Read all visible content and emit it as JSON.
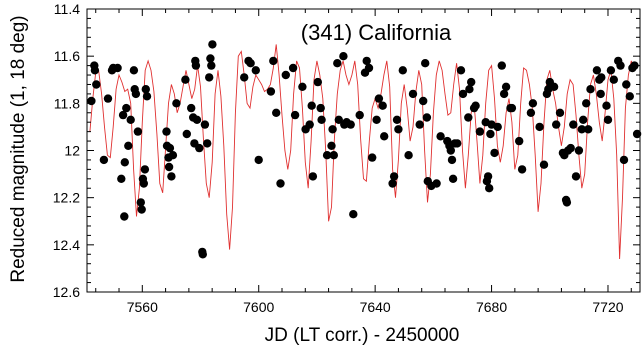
{
  "chart_data": {
    "type": "scatter",
    "title": "(341) California",
    "xlabel": "JD (LT corr.) - 2450000",
    "ylabel": "Reduced magnitude (1, 18 deg)",
    "xlim": [
      7541,
      7731
    ],
    "ylim": [
      11.4,
      12.6
    ],
    "y_inverted": true,
    "xticks": [
      7560,
      7600,
      7640,
      7680,
      7720
    ],
    "yticks": [
      11.4,
      11.6,
      11.8,
      12,
      12.2,
      12.4,
      12.6
    ],
    "xtick_labels": [
      "7560",
      "7600",
      "7640",
      "7680",
      "7720"
    ],
    "ytick_labels": [
      "11.4",
      "11.6",
      "11.8",
      "12",
      "12.2",
      "12.4",
      "12.6"
    ],
    "grid": false,
    "colors": {
      "points": "#000000",
      "model": "#e03030"
    },
    "series": [
      {
        "type": "scatter",
        "points": [
          [
            7542.5,
            11.79
          ],
          [
            7543.5,
            11.64
          ],
          [
            7543.7,
            11.66
          ],
          [
            7544.2,
            11.72
          ],
          [
            7546.8,
            12.04
          ],
          [
            7548.2,
            11.78
          ],
          [
            7549.6,
            11.66
          ],
          [
            7550,
            11.65
          ],
          [
            7551.5,
            11.65
          ],
          [
            7552.8,
            12.12
          ],
          [
            7553.4,
            11.85
          ],
          [
            7553.8,
            12.28
          ],
          [
            7554,
            12.05
          ],
          [
            7554.5,
            11.82
          ],
          [
            7555.2,
            11.98
          ],
          [
            7556,
            11.87
          ],
          [
            7557.1,
            11.66
          ],
          [
            7557.4,
            11.74
          ],
          [
            7557.8,
            11.76
          ],
          [
            7558.5,
            11.92
          ],
          [
            7559.5,
            12.22
          ],
          [
            7559.8,
            12.25
          ],
          [
            7560.2,
            12.12
          ],
          [
            7560.5,
            12.14
          ],
          [
            7560.9,
            12.08
          ],
          [
            7561.2,
            11.74
          ],
          [
            7561.6,
            11.77
          ],
          [
            7568.3,
            11.92
          ],
          [
            7568.5,
            11.98
          ],
          [
            7569,
            12.03
          ],
          [
            7569.2,
            12.07
          ],
          [
            7569.5,
            11.99
          ],
          [
            7570,
            12.11
          ],
          [
            7570.5,
            12.02
          ],
          [
            7571.7,
            11.8
          ],
          [
            7574.8,
            11.7
          ],
          [
            7575.3,
            11.93
          ],
          [
            7576.8,
            11.82
          ],
          [
            7577.5,
            11.86
          ],
          [
            7577.9,
            11.97
          ],
          [
            7578.2,
            11.62
          ],
          [
            7578.4,
            11.64
          ],
          [
            7578.8,
            11.87
          ],
          [
            7579.6,
            11.99
          ],
          [
            7580.6,
            12.43
          ],
          [
            7580.8,
            12.44
          ],
          [
            7581.5,
            11.89
          ],
          [
            7582.3,
            11.97
          ],
          [
            7583,
            11.69
          ],
          [
            7583.4,
            11.61
          ],
          [
            7583.7,
            11.64
          ],
          [
            7584.1,
            11.55
          ],
          [
            7595,
            11.69
          ],
          [
            7596.5,
            11.62
          ],
          [
            7597.2,
            11.63
          ],
          [
            7599,
            11.66
          ],
          [
            7600,
            12.04
          ],
          [
            7604.2,
            11.75
          ],
          [
            7605,
            11.62
          ],
          [
            7606,
            11.84
          ],
          [
            7607.5,
            12.14
          ],
          [
            7609.3,
            11.68
          ],
          [
            7611.8,
            11.65
          ],
          [
            7612.5,
            11.85
          ],
          [
            7615,
            11.73
          ],
          [
            7616.1,
            11.91
          ],
          [
            7617.5,
            11.89
          ],
          [
            7618.2,
            11.81
          ],
          [
            7618.6,
            12.11
          ],
          [
            7620.3,
            11.71
          ],
          [
            7621.3,
            11.82
          ],
          [
            7621.6,
            11.87
          ],
          [
            7623.5,
            12.02
          ],
          [
            7625,
            11.98
          ],
          [
            7625.4,
            11.91
          ],
          [
            7625.8,
            12.02
          ],
          [
            7627,
            11.63
          ],
          [
            7627.5,
            11.87
          ],
          [
            7629.1,
            11.6
          ],
          [
            7629.4,
            11.89
          ],
          [
            7630.2,
            11.88
          ],
          [
            7631.6,
            11.89
          ],
          [
            7632.5,
            12.27
          ],
          [
            7634.7,
            11.85
          ],
          [
            7636.5,
            11.67
          ],
          [
            7637.1,
            11.62
          ],
          [
            7637.9,
            11.65
          ],
          [
            7639,
            12.03
          ],
          [
            7640.5,
            11.87
          ],
          [
            7641.3,
            11.78
          ],
          [
            7642.6,
            11.81
          ],
          [
            7643.1,
            11.94
          ],
          [
            7646,
            12.14
          ],
          [
            7646.5,
            12.11
          ],
          [
            7647.5,
            11.87
          ],
          [
            7648,
            11.91
          ],
          [
            7649.5,
            11.66
          ],
          [
            7651.5,
            12.02
          ],
          [
            7653,
            11.76
          ],
          [
            7655.3,
            11.89
          ],
          [
            7656.5,
            11.79
          ],
          [
            7657.2,
            11.63
          ],
          [
            7657.8,
            11.86
          ],
          [
            7658.1,
            12.13
          ],
          [
            7659.3,
            12.15
          ],
          [
            7661.1,
            12.14
          ],
          [
            7662.5,
            11.94
          ],
          [
            7664.8,
            11.96
          ],
          [
            7665.5,
            11.98
          ],
          [
            7666,
            12
          ],
          [
            7666.4,
            12.04
          ],
          [
            7666.8,
            12.12
          ],
          [
            7667.4,
            11.97
          ],
          [
            7668.2,
            11.97
          ],
          [
            7669.5,
            11.66
          ],
          [
            7670.2,
            11.76
          ],
          [
            7672,
            11.86
          ],
          [
            7672.4,
            11.74
          ],
          [
            7673,
            11.71
          ],
          [
            7674,
            11.82
          ],
          [
            7674.5,
            11.81
          ],
          [
            7676,
            11.92
          ],
          [
            7678,
            11.88
          ],
          [
            7678.4,
            12.13
          ],
          [
            7678.8,
            12.11
          ],
          [
            7679.2,
            12.16
          ],
          [
            7679.6,
            11.93
          ],
          [
            7680,
            11.89
          ],
          [
            7681,
            12.01
          ],
          [
            7682.1,
            11.9
          ],
          [
            7683.5,
            11.64
          ],
          [
            7684.3,
            11.76
          ],
          [
            7685,
            11.73
          ],
          [
            7686.5,
            11.82
          ],
          [
            7687,
            11.82
          ],
          [
            7689.5,
            11.96
          ],
          [
            7690.5,
            12.08
          ],
          [
            7693.5,
            11.84
          ],
          [
            7694.2,
            11.8
          ],
          [
            7696.5,
            11.9
          ],
          [
            7698,
            12.06
          ],
          [
            7699,
            11.76
          ],
          [
            7699.5,
            11.74
          ],
          [
            7700,
            11.71
          ],
          [
            7701.5,
            11.73
          ],
          [
            7702.2,
            11.89
          ],
          [
            7703.5,
            11.84
          ],
          [
            7704.5,
            12.01
          ],
          [
            7705,
            12.02
          ],
          [
            7705.6,
            12.21
          ],
          [
            7705.9,
            12.22
          ],
          [
            7706.3,
            12
          ],
          [
            7707.2,
            11.99
          ],
          [
            7708.1,
            11.89
          ],
          [
            7709,
            12.11
          ],
          [
            7710,
            12
          ],
          [
            7711,
            11.91
          ],
          [
            7711.5,
            11.87
          ],
          [
            7712.5,
            11.8
          ],
          [
            7713.2,
            11.91
          ],
          [
            7714,
            11.74
          ],
          [
            7716.2,
            11.66
          ],
          [
            7717,
            11.7
          ],
          [
            7717.5,
            11.76
          ],
          [
            7717.7,
            11.69
          ],
          [
            7719.5,
            11.81
          ],
          [
            7720,
            11.87
          ],
          [
            7721,
            11.66
          ],
          [
            7722,
            11.7
          ],
          [
            7723.5,
            11.62
          ],
          [
            7724.3,
            11.64
          ],
          [
            7725.5,
            12.04
          ],
          [
            7726.3,
            11.72
          ],
          [
            7727.5,
            11.77
          ],
          [
            7728.4,
            11.65
          ],
          [
            7729.1,
            11.64
          ],
          [
            7730,
            11.93
          ]
        ]
      },
      {
        "type": "line",
        "start": 7542,
        "end": 7729,
        "values": [
          11.92,
          11.78,
          11.67,
          11.66,
          11.76,
          11.9,
          12.02,
          12.03,
          11.9,
          11.74,
          11.68,
          11.71,
          11.75,
          11.74,
          11.8,
          12.08,
          12.28,
          12.16,
          11.88,
          11.66,
          11.62,
          11.66,
          11.75,
          11.93,
          12.14,
          12.18,
          11.99,
          11.8,
          11.72,
          11.76,
          11.84,
          11.8,
          11.73,
          11.66,
          11.72,
          11.78,
          11.74,
          11.64,
          11.73,
          11.95,
          12.14,
          12.2,
          12.05,
          11.76,
          11.66,
          11.77,
          11.98,
          12.27,
          12.42,
          12.24,
          11.84,
          11.6,
          11.58,
          11.68,
          11.8,
          11.82,
          11.73,
          11.68,
          11.7,
          11.72,
          11.75,
          11.74,
          11.72,
          11.65,
          11.55,
          11.68,
          11.85,
          12.0,
          12.08,
          12.0,
          11.76,
          11.62,
          11.65,
          11.82,
          12.05,
          12.16,
          11.96,
          11.7,
          11.62,
          11.68,
          11.78,
          12.0,
          12.3,
          12.24,
          11.95,
          11.76,
          11.66,
          11.62,
          11.68,
          11.72,
          11.68,
          11.62,
          11.72,
          11.95,
          12.12,
          12.13,
          11.96,
          11.82,
          11.78,
          11.82,
          11.76,
          11.68,
          11.62,
          11.73,
          12.08,
          12.2,
          12.04,
          11.8,
          11.72,
          11.82,
          11.96,
          11.9,
          11.75,
          11.66,
          11.72,
          12.0,
          12.22,
          12.1,
          11.84,
          11.68,
          11.62,
          11.66,
          11.76,
          11.85,
          11.84,
          11.72,
          11.63,
          11.74,
          12.0,
          12.16,
          12.02,
          11.84,
          11.8,
          11.96,
          12.14,
          12.02,
          11.8,
          11.66,
          11.64,
          11.78,
          11.98,
          12.05,
          11.98,
          11.84,
          11.78,
          11.88,
          12.08,
          12.02,
          11.8,
          11.65,
          11.66,
          11.72,
          11.82,
          12.02,
          12.26,
          12.14,
          11.88,
          11.7,
          11.66,
          11.74,
          11.8,
          11.9,
          11.98,
          11.9,
          11.76,
          11.7,
          11.72,
          11.85,
          12.02,
          12.16,
          12.1,
          11.88,
          11.72,
          11.68,
          11.76,
          11.88,
          11.96,
          11.84,
          11.7,
          11.66,
          11.78,
          12.02,
          12.46,
          12.2,
          11.82,
          11.68,
          11.62,
          11.66
        ]
      }
    ]
  }
}
